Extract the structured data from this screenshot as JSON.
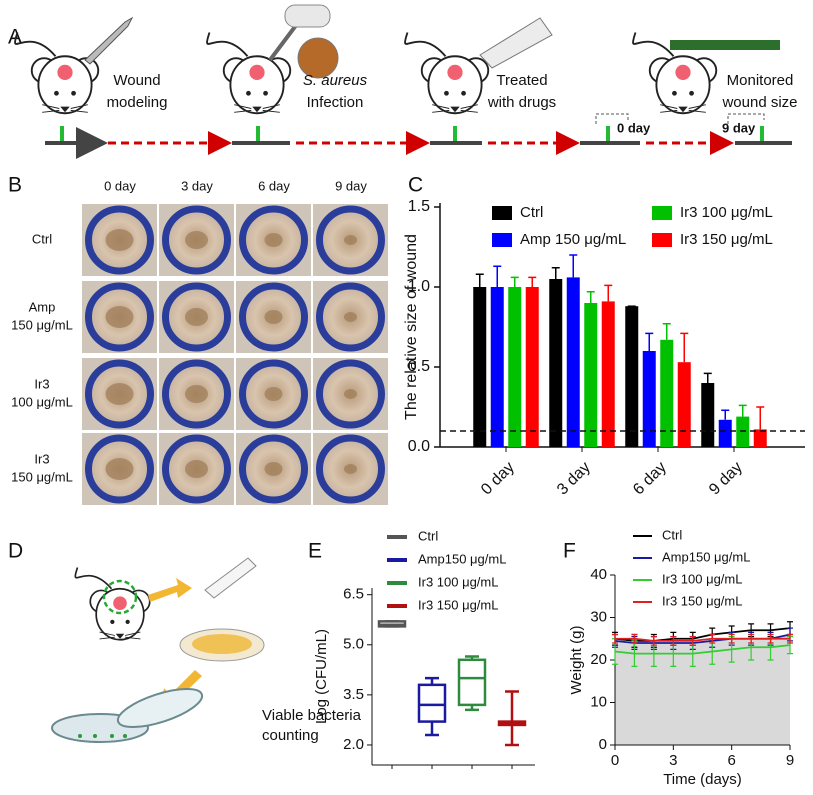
{
  "panel_labels": [
    "A",
    "B",
    "C",
    "D",
    "E",
    "F"
  ],
  "panel_a": {
    "steps": [
      [
        "Wound",
        "modeling"
      ],
      [
        "S. aureus",
        "Infection"
      ],
      [
        "Treated",
        "with drugs"
      ],
      [
        "Monitored",
        "wound size"
      ]
    ],
    "day_marks": [
      "0 day",
      "9 day"
    ]
  },
  "panel_b": {
    "columns": [
      "0 day",
      "3 day",
      "6 day",
      "9 day"
    ],
    "rows": [
      [
        "Ctrl"
      ],
      [
        "Amp",
        "150 μg/mL"
      ],
      [
        "Ir3",
        "100 μg/mL"
      ],
      [
        "Ir3",
        "150 μg/mL"
      ]
    ]
  },
  "panel_d": {
    "caption": [
      "Viable bacteria",
      "counting"
    ]
  },
  "chart_data": [
    {
      "type": "bar",
      "ylabel": "The relative size of wound",
      "categories": [
        "0 day",
        "3 day",
        "6 day",
        "9 day"
      ],
      "series": [
        {
          "name": "Ctrl",
          "color": "#000000",
          "values": [
            1.0,
            1.05,
            0.88,
            0.4
          ],
          "errors": [
            0.08,
            0.07,
            0,
            0.06
          ]
        },
        {
          "name": "Amp 150 μg/mL",
          "color": "#0000ff",
          "values": [
            1.0,
            1.06,
            0.6,
            0.17
          ],
          "errors": [
            0.13,
            0.14,
            0.11,
            0.06
          ]
        },
        {
          "name": "Ir3 100 μg/mL",
          "color": "#00c000",
          "values": [
            1.0,
            0.9,
            0.67,
            0.19
          ],
          "errors": [
            0.06,
            0.07,
            0.1,
            0.07
          ]
        },
        {
          "name": "Ir3 150 μg/mL",
          "color": "#ff0000",
          "values": [
            1.0,
            0.91,
            0.53,
            0.11
          ],
          "errors": [
            0.06,
            0.1,
            0.18,
            0.14
          ]
        }
      ],
      "ylim": [
        0,
        1.5
      ],
      "yticks": [
        {
          "value": 0,
          "label": "0.0"
        },
        0.5,
        {
          "value": 1,
          "label": "1.0"
        },
        1.5
      ],
      "threshold": 0.1
    },
    {
      "type": "box",
      "ylabel": "Log (CFU/mL)",
      "series": [
        {
          "name": "Ctrl",
          "color": "#555555",
          "min": 5.55,
          "q1": 5.55,
          "median": 5.6,
          "q3": 5.7,
          "max": 5.7
        },
        {
          "name": "Amp150 μg/mL",
          "color": "#1a1aa0",
          "min": 2.3,
          "q1": 2.7,
          "median": 3.2,
          "q3": 3.8,
          "max": 4.0
        },
        {
          "name": "Ir3 100 μg/mL",
          "color": "#2e8b3e",
          "min": 3.05,
          "q1": 3.2,
          "median": 4.0,
          "q3": 4.55,
          "max": 4.65
        },
        {
          "name": "Ir3 150 μg/mL",
          "color": "#b01010",
          "min": 2.0,
          "q1": 2.6,
          "median": 2.65,
          "q3": 2.7,
          "max": 3.6
        }
      ],
      "ylim": [
        1.4,
        6.7
      ],
      "yticks": [
        {
          "value": 2,
          "label": "2.0"
        },
        3.5,
        {
          "value": 5,
          "label": "5.0"
        },
        6.5
      ]
    },
    {
      "type": "line",
      "xlabel": "Time (days)",
      "ylabel": "Weight (g)",
      "x": [
        0,
        1,
        2,
        3,
        4,
        5,
        6,
        7,
        8,
        9
      ],
      "series": [
        {
          "name": "Ctrl",
          "color": "#000000",
          "values": [
            25,
            24.5,
            24.5,
            25,
            25,
            26,
            26.5,
            27,
            27,
            27.5
          ],
          "errors": [
            1.5,
            1.5,
            1.5,
            1.5,
            1.5,
            1.5,
            1.5,
            1.5,
            1.5,
            1.5
          ]
        },
        {
          "name": "Amp150 μg/mL",
          "color": "#1a1aa0",
          "values": [
            24.5,
            24,
            24,
            24,
            24,
            24.5,
            25,
            25,
            25,
            26
          ],
          "errors": [
            1.5,
            1.5,
            1.5,
            1.5,
            1.5,
            1.5,
            1.5,
            1.5,
            1.5,
            1.5
          ]
        },
        {
          "name": "Ir3 100 μg/mL",
          "color": "#33cc33",
          "values": [
            22,
            21.5,
            21.5,
            21.5,
            21.5,
            22,
            22.5,
            23,
            23,
            23.5
          ],
          "errors": [
            3,
            3,
            3,
            3,
            3,
            3,
            3,
            3,
            3,
            2
          ]
        },
        {
          "name": "Ir3 150 μg/mL",
          "color": "#e02020",
          "values": [
            25,
            25,
            24.5,
            24.5,
            24.5,
            25,
            25,
            25,
            25,
            25
          ],
          "errors": [
            1,
            1,
            1,
            1,
            1,
            1,
            1,
            1,
            1,
            1
          ]
        }
      ],
      "xlim": [
        0,
        9
      ],
      "xticks": [
        0,
        3,
        6,
        9
      ],
      "ylim": [
        0,
        40
      ],
      "yticks": [
        0,
        10,
        20,
        30,
        40
      ],
      "area_color": "#d9d9d9"
    }
  ]
}
